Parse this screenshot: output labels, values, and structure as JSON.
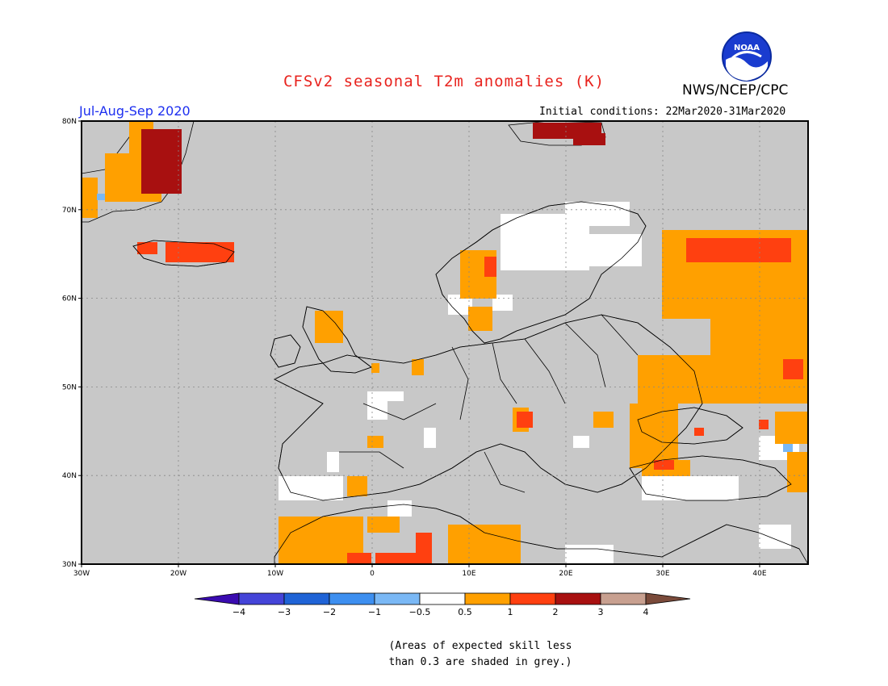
{
  "title": "CFSv2 seasonal T2m anomalies (K)",
  "organization": "NWS/NCEP/CPC",
  "logo_text": "NOAA",
  "season": "Jul-Aug-Sep 2020",
  "initial_conditions": "Initial conditions: 22Mar2020-31Mar2020",
  "latitude_labels": [
    "80N",
    "70N",
    "60N",
    "50N",
    "40N",
    "30N"
  ],
  "longitude_labels": [
    "30W",
    "20W",
    "10W",
    "0",
    "10E",
    "20E",
    "30E",
    "40E"
  ],
  "colorbar": {
    "labels": [
      "−4",
      "−3",
      "−2",
      "−1",
      "−0.5",
      "0.5",
      "1",
      "2",
      "3",
      "4"
    ],
    "colors": [
      "#3a0bb0",
      "#4444d8",
      "#1f63d6",
      "#3d8ff0",
      "#7ab8f5",
      "#ffffff",
      "#ffa000",
      "#ff4010",
      "#a81010",
      "#c8a090",
      "#7a4a3a"
    ]
  },
  "skill_note": {
    "line1": "(Areas of expected skill less",
    "line2": "than 0.3 are shaded in grey.)"
  },
  "map_colors": {
    "background": "#c8c8c8",
    "no_anomaly": "#ffffff",
    "warm_05_1": "#ffa000",
    "warm_1_2": "#ff4010",
    "warm_2_3": "#a81010",
    "cool_05_1": "#7ab8f5"
  }
}
